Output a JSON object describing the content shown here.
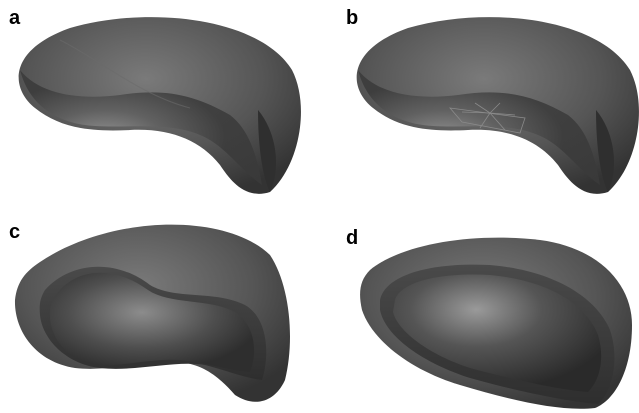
{
  "panels": [
    {
      "label": "a",
      "shape": "biconcave-disc"
    },
    {
      "label": "b",
      "shape": "biconcave-disc-with-sector-cutout"
    },
    {
      "label": "c",
      "shape": "biconcave-disc-cross-section"
    },
    {
      "label": "d",
      "shape": "ellipsoid-cross-section"
    }
  ],
  "colors": {
    "background": "#ffffff",
    "surface_dark": "#3a3a3a",
    "surface_mid": "#5a5a5a",
    "surface_light": "#9a9a9a",
    "label": "#000000"
  }
}
